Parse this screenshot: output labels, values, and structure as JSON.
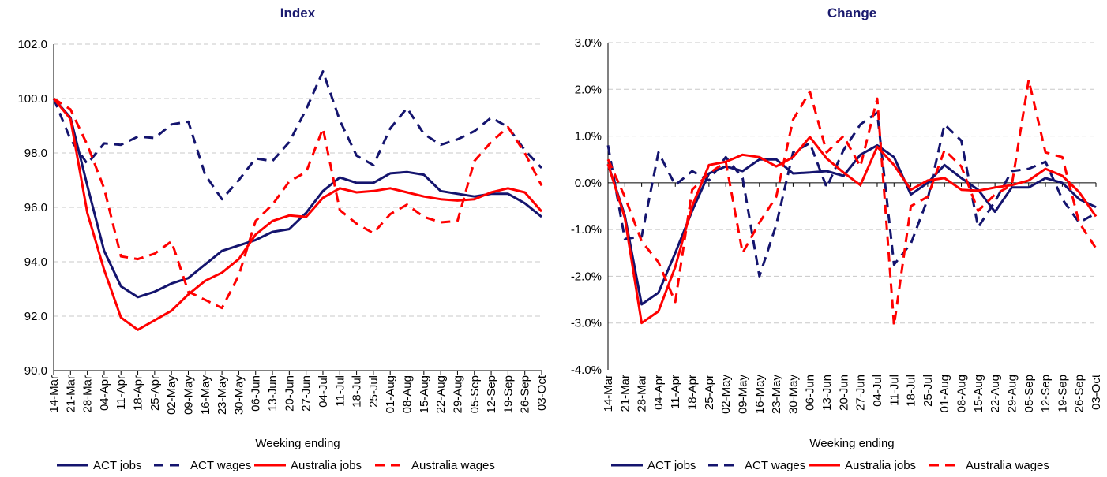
{
  "chart_data": [
    {
      "type": "line",
      "title": "Index",
      "x_label": "Weeking ending",
      "categories": [
        "14-Mar",
        "21-Mar",
        "28-Mar",
        "04-Apr",
        "11-Apr",
        "18-Apr",
        "25-Apr",
        "02-May",
        "09-May",
        "16-May",
        "23-May",
        "30-May",
        "06-Jun",
        "13-Jun",
        "20-Jun",
        "27-Jun",
        "04-Jul",
        "11-Jul",
        "18-Jul",
        "25-Jul",
        "01-Aug",
        "08-Aug",
        "15-Aug",
        "22-Aug",
        "29-Aug",
        "05-Sep",
        "12-Sep",
        "19-Sep",
        "26-Sep",
        "03-Oct"
      ],
      "ylim": [
        90,
        102
      ],
      "yticks": [
        {
          "value": 90,
          "label": "90.0"
        },
        {
          "value": 92,
          "label": "92.0"
        },
        {
          "value": 94,
          "label": "94.0"
        },
        {
          "value": 96,
          "label": "96.0"
        },
        {
          "value": 98,
          "label": "98.0"
        },
        {
          "value": 100,
          "label": "100.0"
        },
        {
          "value": 102,
          "label": "102.0"
        }
      ],
      "grid": true,
      "legend": "bottom",
      "series": [
        {
          "name": "ACT jobs",
          "color": "#14146e",
          "dashed": false,
          "values": [
            100,
            99.3,
            96.8,
            94.4,
            93.1,
            92.7,
            92.9,
            93.2,
            93.4,
            93.9,
            94.4,
            94.6,
            94.8,
            95.1,
            95.2,
            95.8,
            96.6,
            97.1,
            96.9,
            96.9,
            97.25,
            97.3,
            97.2,
            96.6,
            96.5,
            96.4,
            96.5,
            96.5,
            96.15,
            95.65
          ]
        },
        {
          "name": "ACT wages",
          "color": "#14146e",
          "dashed": true,
          "values": [
            100,
            98.5,
            97.6,
            98.35,
            98.3,
            98.6,
            98.55,
            99.05,
            99.15,
            97.2,
            96.3,
            97.0,
            97.8,
            97.7,
            98.4,
            99.6,
            101.0,
            99.2,
            97.9,
            97.55,
            98.9,
            99.65,
            98.7,
            98.3,
            98.5,
            98.8,
            99.3,
            98.95,
            98.1,
            97.45
          ]
        },
        {
          "name": "Australia jobs",
          "color": "#ff0000",
          "dashed": false,
          "values": [
            100,
            99.25,
            95.8,
            93.7,
            91.95,
            91.5,
            91.85,
            92.2,
            92.8,
            93.3,
            93.6,
            94.1,
            95.0,
            95.5,
            95.7,
            95.65,
            96.35,
            96.7,
            96.55,
            96.6,
            96.7,
            96.55,
            96.4,
            96.3,
            96.25,
            96.3,
            96.55,
            96.7,
            96.55,
            95.85
          ]
        },
        {
          "name": "Australia wages",
          "color": "#ff0000",
          "dashed": true,
          "values": [
            100,
            99.6,
            98.3,
            96.7,
            94.2,
            94.1,
            94.3,
            94.75,
            92.9,
            92.6,
            92.3,
            93.5,
            95.5,
            96.1,
            96.95,
            97.3,
            98.9,
            95.9,
            95.4,
            95.05,
            95.75,
            96.1,
            95.65,
            95.45,
            95.5,
            97.7,
            98.4,
            98.95,
            98.0,
            96.8
          ]
        }
      ]
    },
    {
      "type": "line",
      "title": "Change",
      "x_label": "Weeking ending",
      "categories": [
        "14-Mar",
        "21-Mar",
        "28-Mar",
        "04-Apr",
        "11-Apr",
        "18-Apr",
        "25-Apr",
        "02-May",
        "09-May",
        "16-May",
        "23-May",
        "30-May",
        "06-Jun",
        "13-Jun",
        "20-Jun",
        "27-Jun",
        "04-Jul",
        "11-Jul",
        "18-Jul",
        "25-Jul",
        "01-Aug",
        "08-Aug",
        "15-Aug",
        "22-Aug",
        "29-Aug",
        "05-Sep",
        "12-Sep",
        "19-Sep",
        "26-Sep",
        "03-Oct"
      ],
      "ylim": [
        -4,
        3
      ],
      "yticks": [
        {
          "value": -4,
          "label": "-4.0%"
        },
        {
          "value": -3,
          "label": "-3.0%"
        },
        {
          "value": -2,
          "label": "-2.0%"
        },
        {
          "value": -1,
          "label": "-1.0%"
        },
        {
          "value": 0,
          "label": "0.0%"
        },
        {
          "value": 1,
          "label": "1.0%"
        },
        {
          "value": 2,
          "label": "2.0%"
        },
        {
          "value": 3,
          "label": "3.0%"
        }
      ],
      "grid": true,
      "legend": "bottom",
      "series": [
        {
          "name": "ACT jobs",
          "color": "#14146e",
          "dashed": false,
          "values": [
            0.4,
            -0.7,
            -2.6,
            -2.35,
            -1.5,
            -0.6,
            0.2,
            0.35,
            0.25,
            0.5,
            0.5,
            0.2,
            0.22,
            0.25,
            0.15,
            0.6,
            0.8,
            0.55,
            -0.25,
            0,
            0.38,
            0.1,
            -0.15,
            -0.62,
            -0.1,
            -0.1,
            0.1,
            0,
            -0.35,
            -0.52
          ]
        },
        {
          "name": "ACT wages",
          "color": "#14146e",
          "dashed": true,
          "values": [
            0.8,
            -1.2,
            -1.15,
            0.65,
            -0.05,
            0.25,
            0.05,
            0.55,
            0.1,
            -2.0,
            -0.9,
            0.65,
            0.85,
            -0.1,
            0.7,
            1.25,
            1.5,
            -1.75,
            -1.3,
            -0.35,
            1.25,
            0.9,
            -0.95,
            -0.4,
            0.25,
            0.3,
            0.45,
            -0.35,
            -0.85,
            -0.65
          ]
        },
        {
          "name": "Australia jobs",
          "color": "#ff0000",
          "dashed": false,
          "values": [
            0.4,
            -0.75,
            -3.0,
            -2.75,
            -1.8,
            -0.5,
            0.38,
            0.45,
            0.6,
            0.55,
            0.35,
            0.55,
            0.98,
            0.52,
            0.22,
            -0.05,
            0.77,
            0.38,
            -0.15,
            0.05,
            0.1,
            -0.15,
            -0.17,
            -0.1,
            -0.05,
            0.05,
            0.3,
            0.15,
            -0.2,
            -0.72
          ]
        },
        {
          "name": "Australia wages",
          "color": "#ff0000",
          "dashed": true,
          "values": [
            0.5,
            -0.3,
            -1.25,
            -1.7,
            -2.55,
            -0.15,
            0.2,
            0.45,
            -1.5,
            -0.85,
            -0.3,
            1.35,
            1.95,
            0.65,
            1.0,
            0.35,
            1.8,
            -3.05,
            -0.5,
            -0.3,
            0.7,
            0.35,
            -0.6,
            -0.25,
            -0.05,
            2.2,
            0.65,
            0.55,
            -0.85,
            -1.4
          ]
        }
      ]
    }
  ]
}
